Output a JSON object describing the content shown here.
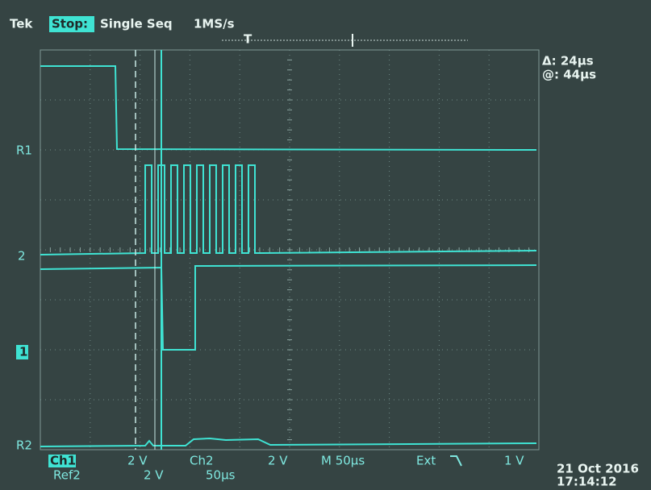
{
  "header": {
    "brand": "Tek",
    "status": "Stop:",
    "mode": "Single Seq",
    "sample_rate": "1MS/s",
    "trigger_marker": "T"
  },
  "cursor_readout": {
    "delta": "Δ: 24µs",
    "at": "@: 44µs"
  },
  "channel_markers": [
    "R1",
    "2",
    "1",
    "R2"
  ],
  "footer": {
    "row1": [
      "Ch1",
      "2 V",
      "Ch2",
      "2 V",
      "M 50µs",
      "Ext",
      "1 V"
    ],
    "row2": [
      "Ref2",
      "2 V",
      "50µs"
    ]
  },
  "timestamp": {
    "date": "21 Oct 2016",
    "time": "17:14:12"
  }
}
